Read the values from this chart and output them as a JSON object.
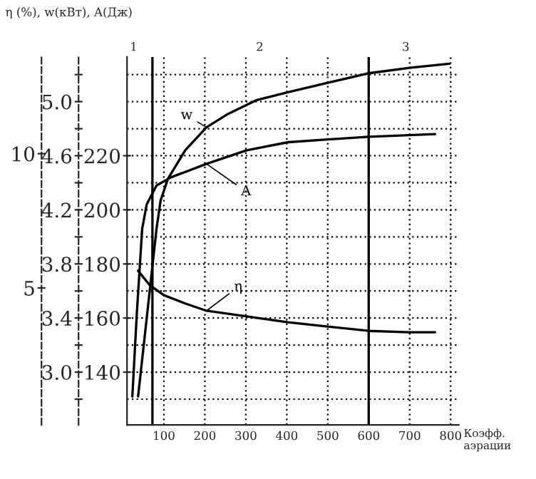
{
  "chart_data": {
    "type": "line",
    "ylabel": "η (%), w(кВт), A(Дж)",
    "xlabel": "Коэфф.\nаэрации",
    "xlim": [
      10,
      820
    ],
    "xticks": [
      100,
      200,
      300,
      400,
      500,
      600,
      700,
      800
    ],
    "ylim": [
      2.61,
      5.33
    ],
    "yticks": [
      {
        "value": 2.8,
        "label": null
      },
      {
        "value": 3.0,
        "label": "3.0"
      },
      {
        "value": 3.2,
        "label": null
      },
      3.4,
      {
        "value": 3.6,
        "label": null
      },
      3.8,
      {
        "value": 4.0,
        "label": null
      },
      4.2,
      {
        "value": 4.4,
        "label": null
      },
      4.6,
      {
        "value": 4.8,
        "label": null
      },
      {
        "value": 5.0,
        "label": "5.0"
      },
      {
        "value": 5.2,
        "label": null
      }
    ],
    "y2lim": [
      120.5,
      256.5
    ],
    "y2ticks": [
      140,
      160,
      180,
      200,
      220
    ],
    "y3lim": [
      -0.1,
      13.6
    ],
    "y3ticks": [
      5,
      10
    ],
    "grid": true,
    "marker": "none",
    "line_style": "solid",
    "ref_lines": [
      {
        "axis": "x",
        "value": 72,
        "color": "#000000"
      },
      {
        "axis": "x",
        "value": 600,
        "color": "#000000"
      }
    ],
    "annotations": [
      "1",
      "2",
      "3"
    ],
    "series": [
      {
        "name": "w",
        "color": "#000000",
        "axis": "y",
        "x": [
          37,
          61,
          82,
          92,
          110,
          152,
          204,
          257,
          325,
          403,
          500,
          600,
          700,
          797
        ],
        "values": [
          2.82,
          3.48,
          4.06,
          4.27,
          4.43,
          4.64,
          4.81,
          4.91,
          5.01,
          5.07,
          5.14,
          5.21,
          5.25,
          5.28
        ]
      },
      {
        "name": "A",
        "color": "#000000",
        "axis": "y2",
        "x": [
          23,
          34,
          47,
          58,
          82,
          117,
          204,
          302,
          403,
          500,
          600,
          762
        ],
        "values": [
          131,
          162,
          193,
          202,
          209,
          212,
          217,
          222,
          225,
          226,
          227,
          228
        ]
      },
      {
        "name": "η",
        "color": "#000000",
        "axis": "y3",
        "x": [
          37,
          65,
          100,
          152,
          204,
          302,
          403,
          500,
          601,
          699,
          762
        ],
        "values": [
          5.64,
          5.11,
          4.73,
          4.42,
          4.15,
          3.94,
          3.72,
          3.56,
          3.4,
          3.35,
          3.35
        ]
      }
    ]
  }
}
